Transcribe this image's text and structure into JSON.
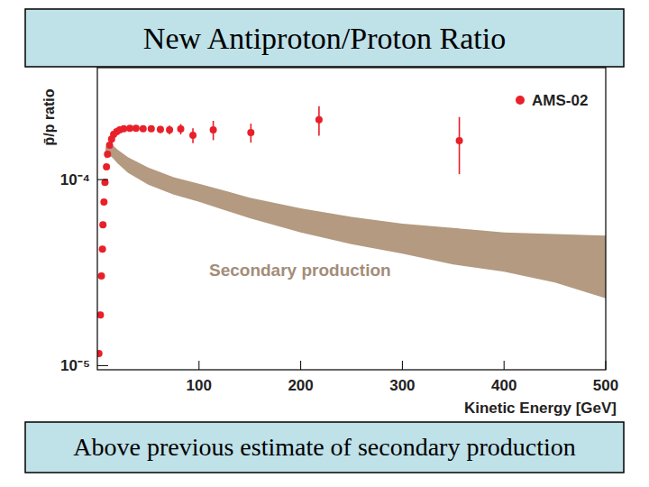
{
  "chart_data": {
    "type": "scatter",
    "title": "New Antiproton/Proton Ratio",
    "annotation": "Above previous estimate of secondary production",
    "x_label": "Kinetic Energy [GeV]",
    "y_label": "p̄/p ratio",
    "log": "y",
    "legend": "upper right",
    "xlim": [
      0,
      500
    ],
    "xticks": [
      100,
      200,
      300,
      400,
      500
    ],
    "ylim": [
      9.5e-06,
      0.0004
    ],
    "yticks": [
      {
        "value": 1e-05,
        "label": "10⁻⁵"
      },
      {
        "value": 0.0001,
        "label": "10⁻⁴"
      }
    ],
    "series": [
      {
        "name": "AMS-02",
        "type": "scatter",
        "marker": "circle",
        "color": "#e8202a",
        "x": [
          1.5,
          3,
          4,
          5,
          5.5,
          6.5,
          7.5,
          9,
          10,
          12,
          14,
          16,
          19,
          22,
          26,
          32,
          38,
          45,
          53,
          62,
          71,
          82,
          94,
          114,
          151,
          218,
          356
        ],
        "values": [
          1.16e-05,
          1.87e-05,
          3.03e-05,
          4.23e-05,
          5.72e-05,
          7.57e-05,
          9.67e-05,
          0.000117,
          0.000137,
          0.000153,
          0.000165,
          0.000175,
          0.000181,
          0.000185,
          0.000188,
          0.000189,
          0.000189,
          0.000188,
          0.000188,
          0.000186,
          0.000185,
          0.000187,
          0.000173,
          0.000185,
          0.000179,
          0.00021,
          0.000162
        ],
        "errors": [
          0,
          0,
          0,
          0,
          0,
          0,
          0,
          0,
          0,
          0,
          0,
          0,
          0,
          0,
          4e-06,
          4e-06,
          5e-06,
          6e-06,
          7e-06,
          8e-06,
          1e-05,
          1.2e-05,
          1.6e-05,
          2.2e-05,
          2.1e-05,
          3.8e-05,
          5.5e-05
        ]
      },
      {
        "name": "Secondary production",
        "type": "band",
        "color": "#b39a80",
        "x": [
          8,
          10,
          15,
          20,
          30,
          50,
          75,
          100,
          150,
          200,
          250,
          300,
          350,
          400,
          450,
          500
        ],
        "values": [
          0.000148,
          0.000156,
          0.000153,
          0.000145,
          0.000132,
          0.000116,
          0.000103,
          9.5e-05,
          8e-05,
          7e-05,
          6.3e-05,
          5.8e-05,
          5.5e-05,
          5.2e-05,
          5.1e-05,
          5e-05
        ],
        "lower": [
          0.000128,
          0.000137,
          0.000131,
          0.000122,
          0.000109,
          9.4e-05,
          8.3e-05,
          7.6e-05,
          6.2e-05,
          5.2e-05,
          4.5e-05,
          4e-05,
          3.5e-05,
          3.2e-05,
          2.8e-05,
          2.3e-05
        ]
      }
    ]
  }
}
